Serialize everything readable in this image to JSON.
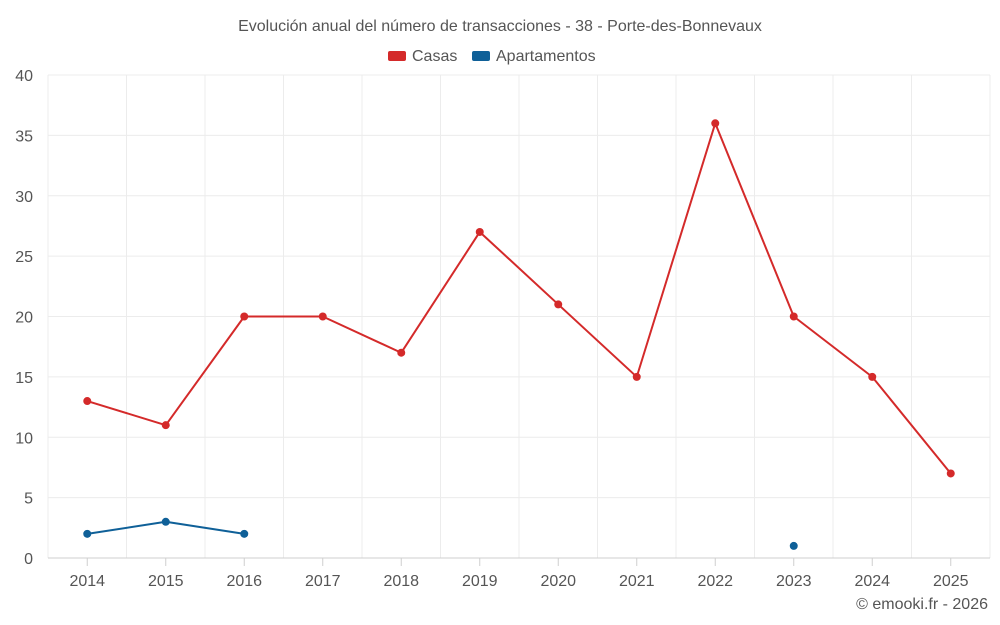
{
  "chart_data": {
    "type": "line",
    "title": "Evolución anual del número de transacciones - 38 - Porte-des-Bonnevaux",
    "categories": [
      "2014",
      "2015",
      "2016",
      "2017",
      "2018",
      "2019",
      "2020",
      "2021",
      "2022",
      "2023",
      "2024",
      "2025"
    ],
    "ylim": [
      0,
      40
    ],
    "yticks": [
      0,
      5,
      10,
      15,
      20,
      25,
      30,
      35,
      40
    ],
    "grid": true,
    "legend_position": "top-center",
    "series": [
      {
        "name": "Casas",
        "color": "#d42a2a",
        "values": [
          13,
          11,
          20,
          20,
          17,
          27,
          21,
          15,
          36,
          20,
          15,
          7
        ]
      },
      {
        "name": "Apartamentos",
        "color": "#0f6098",
        "values": [
          2,
          3,
          2,
          null,
          null,
          null,
          null,
          null,
          null,
          1,
          null,
          null
        ]
      }
    ],
    "credit": "© emooki.fr - 2026"
  }
}
